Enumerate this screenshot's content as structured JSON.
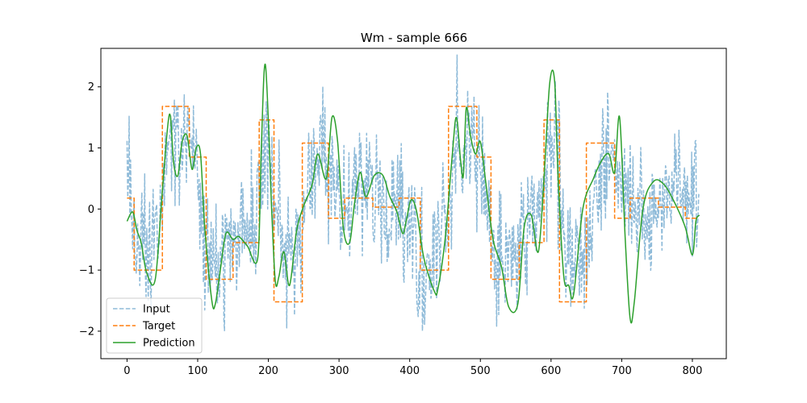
{
  "chart_data": {
    "type": "line",
    "title": "Wm - sample 666",
    "xlabel": "",
    "ylabel": "",
    "xlim": [
      -37,
      848
    ],
    "ylim": [
      -2.45,
      2.63
    ],
    "x_ticks": [
      0,
      100,
      200,
      300,
      400,
      500,
      600,
      700,
      800
    ],
    "y_ticks": [
      -2,
      -1,
      0,
      1,
      2
    ],
    "x_tick_labels": [
      "0",
      "100",
      "200",
      "300",
      "400",
      "500",
      "600",
      "700",
      "800"
    ],
    "y_tick_labels": [
      "−2",
      "−1",
      "0",
      "1",
      "2"
    ],
    "grid": false,
    "legend": {
      "location": "lower-left",
      "entries": [
        "Input",
        "Target",
        "Prediction"
      ]
    },
    "series": [
      {
        "name": "Input",
        "color": "#1f77b4",
        "style": "dashed",
        "alpha": 0.5,
        "noise": 0.5,
        "seed": 666,
        "x": [
          0,
          8,
          10,
          30,
          32,
          50,
          55,
          70,
          85,
          100,
          110,
          130,
          150,
          160,
          180,
          195,
          205,
          225,
          245,
          255,
          265,
          280,
          290,
          300,
          320,
          340,
          360,
          380,
          400,
          415,
          430,
          455,
          465,
          490,
          500,
          515,
          540,
          555,
          570,
          590,
          605,
          625,
          650,
          670,
          690,
          700,
          720,
          750,
          780,
          800,
          810
        ],
        "y": [
          0.6,
          0.0,
          -0.3,
          -0.6,
          -0.8,
          -0.3,
          0.8,
          1.2,
          1.0,
          0.6,
          -0.5,
          -0.9,
          -0.7,
          -0.2,
          -0.3,
          1.3,
          0.3,
          -0.8,
          -0.9,
          0.4,
          0.9,
          1.0,
          0.5,
          0.0,
          0.2,
          0.2,
          0.1,
          0.0,
          -0.3,
          -0.8,
          -0.8,
          -0.2,
          1.2,
          1.2,
          0.6,
          -0.6,
          -0.9,
          -0.5,
          -0.2,
          0.5,
          1.2,
          -0.7,
          -0.9,
          0.6,
          1.0,
          0.4,
          0.1,
          0.2,
          0.3,
          0.3,
          0.2
        ]
      },
      {
        "name": "Target",
        "color": "#ff7f0e",
        "style": "dashed",
        "x": [
          0,
          10,
          10,
          50,
          50,
          88,
          88,
          112,
          112,
          150,
          150,
          187,
          187,
          208,
          208,
          248,
          248,
          285,
          285,
          308,
          308,
          348,
          348,
          385,
          385,
          415,
          415,
          455,
          455,
          495,
          495,
          515,
          515,
          555,
          555,
          590,
          590,
          612,
          612,
          650,
          650,
          690,
          690,
          712,
          712,
          752,
          752,
          790,
          790,
          808
        ],
        "y": [
          0.18,
          0.18,
          -1.0,
          -1.0,
          1.68,
          1.68,
          0.85,
          0.85,
          -1.15,
          -1.15,
          -0.55,
          -0.55,
          1.46,
          1.46,
          -1.52,
          -1.52,
          1.08,
          1.08,
          -0.15,
          -0.15,
          0.18,
          0.18,
          0.03,
          0.03,
          0.18,
          0.18,
          -1.0,
          -1.0,
          1.68,
          1.68,
          0.85,
          0.85,
          -1.15,
          -1.15,
          -0.55,
          -0.55,
          1.46,
          1.46,
          -1.52,
          -1.52,
          1.08,
          1.08,
          -0.15,
          -0.15,
          0.18,
          0.18,
          0.03,
          0.03,
          -0.15,
          -0.15
        ]
      },
      {
        "name": "Prediction",
        "color": "#2ca02c",
        "style": "solid",
        "x": [
          0,
          8,
          14,
          20,
          28,
          40,
          50,
          60,
          66,
          72,
          78,
          85,
          92,
          98,
          104,
          110,
          120,
          125,
          132,
          140,
          150,
          158,
          170,
          185,
          190,
          196,
          205,
          210,
          215,
          222,
          230,
          240,
          250,
          262,
          270,
          282,
          290,
          298,
          306,
          315,
          322,
          330,
          338,
          350,
          362,
          372,
          382,
          390,
          395,
          402,
          410,
          420,
          435,
          440,
          450,
          460,
          466,
          472,
          476,
          480,
          486,
          493,
          500,
          508,
          518,
          530,
          540,
          553,
          562,
          572,
          582,
          590,
          598,
          605,
          610,
          618,
          625,
          632,
          645,
          660,
          672,
          682,
          690,
          697,
          705,
          712,
          718,
          730,
          745,
          760,
          775,
          790,
          800,
          805,
          810
        ],
        "y": [
          -0.2,
          -0.05,
          -0.35,
          -0.55,
          -1.05,
          -1.15,
          0.3,
          1.55,
          0.75,
          0.55,
          1.1,
          1.2,
          0.65,
          1.0,
          0.9,
          -0.3,
          -1.5,
          -1.55,
          -1.0,
          -0.4,
          -0.5,
          -0.45,
          -0.6,
          -0.8,
          1.0,
          2.35,
          -0.1,
          -1.2,
          -1.1,
          -0.7,
          -1.25,
          -0.35,
          0.05,
          0.4,
          0.9,
          0.5,
          1.5,
          1.1,
          -0.3,
          -0.55,
          0.1,
          0.6,
          0.2,
          0.55,
          0.55,
          0.2,
          -0.05,
          -0.4,
          -0.2,
          0.15,
          -0.05,
          -0.8,
          -1.35,
          -1.3,
          -0.5,
          0.85,
          1.5,
          0.8,
          0.55,
          1.65,
          1.2,
          0.9,
          1.1,
          0.4,
          -0.5,
          -0.95,
          -1.6,
          -1.55,
          -0.3,
          -0.1,
          -0.7,
          0.5,
          2.05,
          2.1,
          0.5,
          -1.1,
          -1.25,
          -1.4,
          0.0,
          0.5,
          0.8,
          0.9,
          0.6,
          1.5,
          -0.5,
          -1.8,
          -1.5,
          0.0,
          0.45,
          0.4,
          0.1,
          -0.3,
          -0.75,
          -0.2,
          -0.1
        ]
      }
    ]
  }
}
